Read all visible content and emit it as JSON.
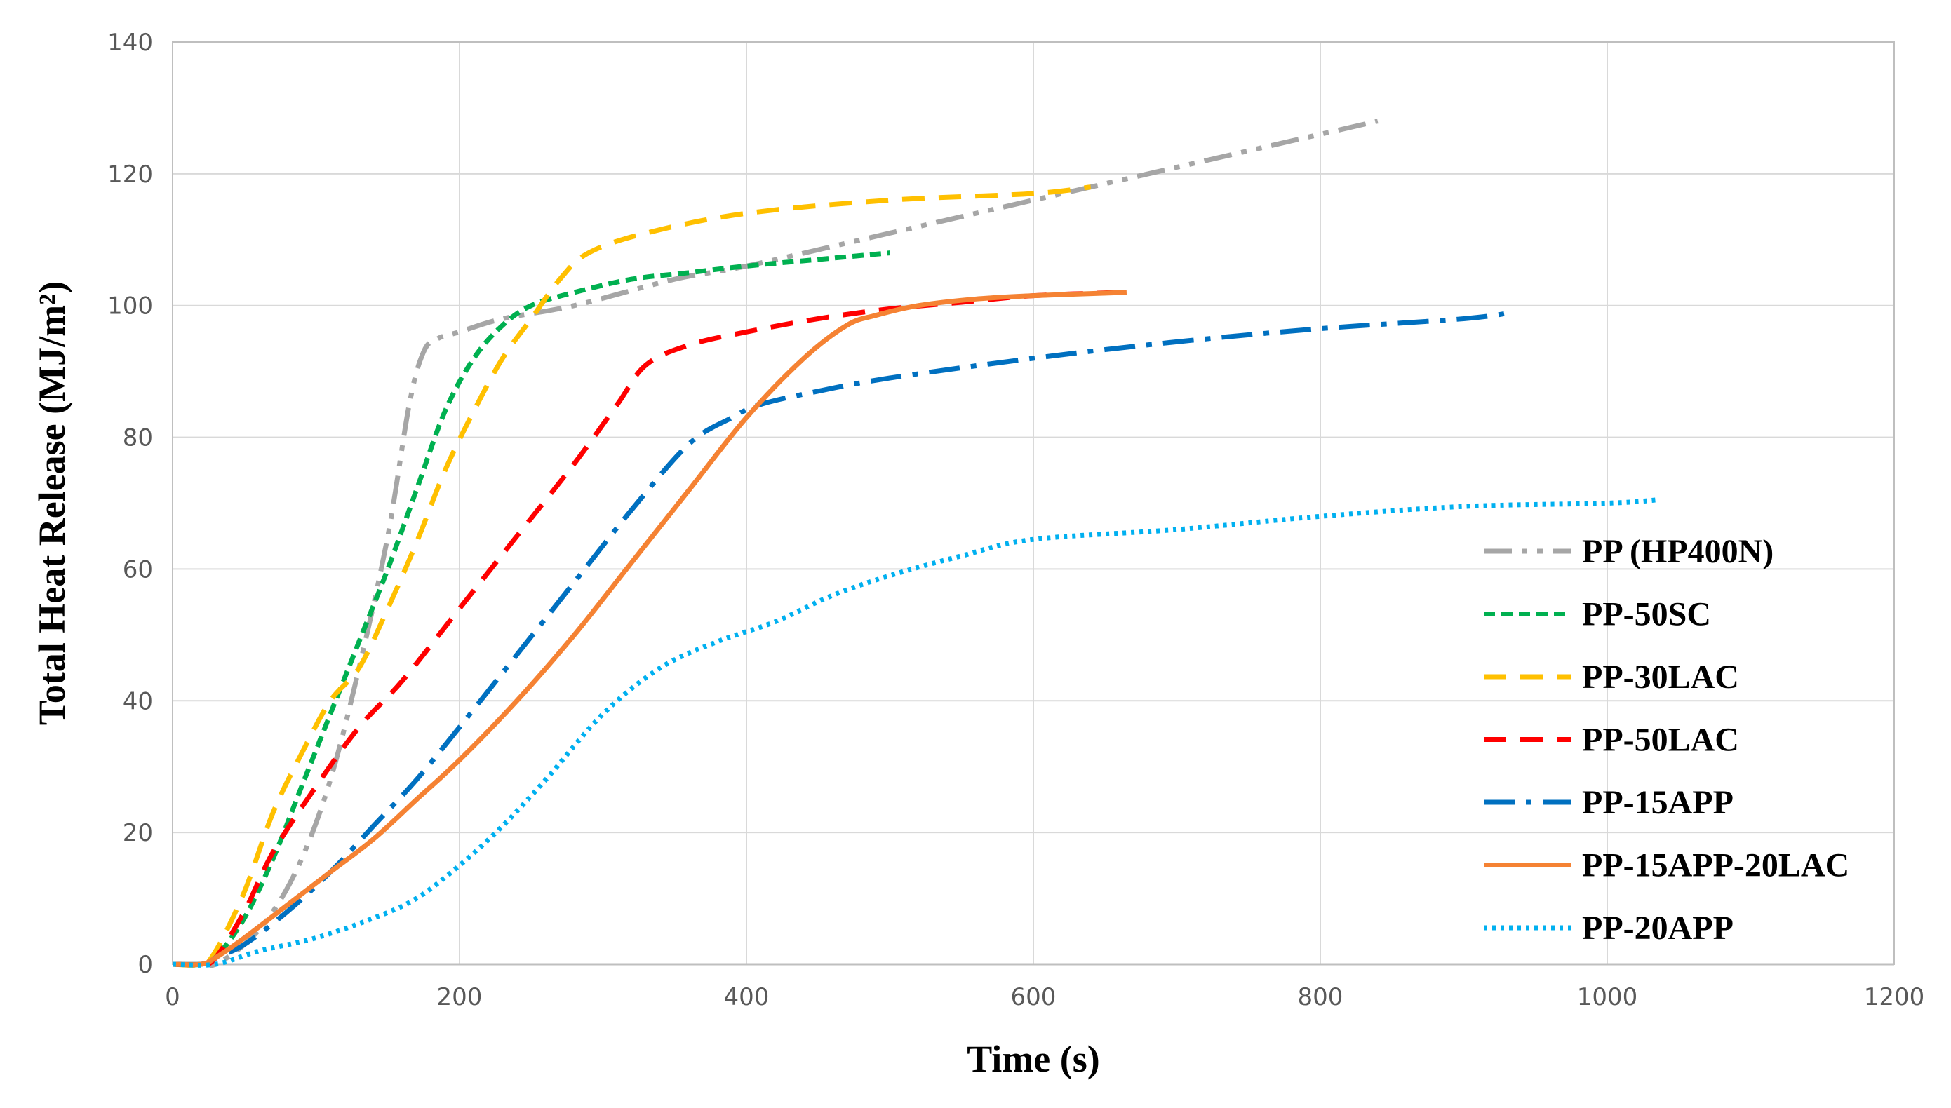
{
  "chart_data": {
    "type": "line",
    "title": "",
    "xlabel": "Time (s)",
    "ylabel": "Total Heat Release  (MJ/m²)",
    "xlim": [
      0,
      1200
    ],
    "ylim": [
      0,
      140
    ],
    "xticks": [
      "0",
      "200",
      "400",
      "600",
      "800",
      "1000",
      "1200"
    ],
    "yticks": [
      "0",
      "20",
      "40",
      "60",
      "80",
      "100",
      "120",
      "140"
    ],
    "grid": true,
    "legend_position": "right",
    "series": [
      {
        "name": "PP (HP400N)",
        "color": "#a6a6a6",
        "dash": "dash-dot-dot",
        "x": [
          0,
          20,
          30,
          50,
          70,
          90,
          110,
          130,
          150,
          165,
          175,
          185,
          200,
          230,
          280,
          350,
          400,
          500,
          600,
          700,
          780,
          840
        ],
        "y": [
          0,
          0,
          0,
          3,
          8,
          16,
          28,
          45,
          65,
          85,
          93,
          95,
          96,
          98,
          100,
          104,
          106,
          111,
          116,
          121,
          125,
          128
        ]
      },
      {
        "name": "PP-50SC",
        "color": "#00b050",
        "dash": "short-dash",
        "x": [
          0,
          20,
          30,
          50,
          70,
          90,
          110,
          130,
          150,
          170,
          190,
          210,
          230,
          250,
          280,
          320,
          360,
          400,
          450,
          500
        ],
        "y": [
          0,
          0,
          1,
          7,
          16,
          27,
          38,
          49,
          60,
          72,
          84,
          92,
          97,
          100,
          102,
          104,
          105,
          106,
          107,
          108
        ]
      },
      {
        "name": "PP-30LAC",
        "color": "#ffc000",
        "dash": "dash",
        "x": [
          0,
          20,
          30,
          50,
          70,
          90,
          110,
          130,
          150,
          170,
          190,
          210,
          230,
          250,
          270,
          290,
          330,
          400,
          500,
          600,
          640
        ],
        "y": [
          0,
          0,
          2,
          11,
          23,
          32,
          40,
          45,
          54,
          64,
          75,
          84,
          92,
          98,
          104,
          108,
          111,
          114,
          116,
          117,
          118
        ]
      },
      {
        "name": "PP-50LAC",
        "color": "#ff0000",
        "dash": "dash",
        "x": [
          0,
          20,
          30,
          50,
          70,
          100,
          130,
          160,
          200,
          240,
          280,
          310,
          330,
          360,
          400,
          450,
          500,
          550,
          600,
          660
        ],
        "y": [
          0,
          0,
          1,
          8,
          17,
          27,
          36,
          43,
          54,
          65,
          76,
          85,
          91,
          94,
          96,
          98,
          99.5,
          100.5,
          101.5,
          102
        ]
      },
      {
        "name": "PP-15APP",
        "color": "#0070c0",
        "dash": "long-dash-dot",
        "x": [
          0,
          20,
          30,
          50,
          80,
          110,
          140,
          170,
          200,
          240,
          280,
          320,
          360,
          390,
          410,
          450,
          500,
          600,
          700,
          800,
          900,
          935
        ],
        "y": [
          0,
          0,
          1,
          3,
          8,
          14,
          21,
          28,
          36,
          47,
          58,
          69,
          79,
          83,
          85,
          87,
          89,
          92,
          94.5,
          96.5,
          98,
          99
        ]
      },
      {
        "name": "PP-15APP-20LAC",
        "color": "#f58233",
        "dash": "solid",
        "x": [
          0,
          20,
          30,
          50,
          80,
          110,
          140,
          170,
          200,
          240,
          280,
          320,
          360,
          400,
          440,
          470,
          490,
          520,
          560,
          600,
          665
        ],
        "y": [
          0,
          0,
          1,
          4,
          9,
          14,
          19,
          25,
          31,
          40,
          50,
          61,
          72,
          83,
          92,
          97,
          98.5,
          100,
          101,
          101.5,
          102
        ]
      },
      {
        "name": "PP-20APP",
        "color": "#00b0f0",
        "dash": "dot",
        "x": [
          0,
          30,
          60,
          100,
          140,
          170,
          200,
          230,
          260,
          300,
          340,
          380,
          420,
          460,
          500,
          550,
          600,
          700,
          800,
          900,
          1000,
          1035
        ],
        "y": [
          0,
          0,
          2,
          4,
          7,
          10,
          15,
          21,
          28,
          38,
          45,
          49,
          52,
          56,
          59,
          62,
          64.5,
          66,
          68,
          69.5,
          70,
          70.5
        ]
      }
    ]
  }
}
